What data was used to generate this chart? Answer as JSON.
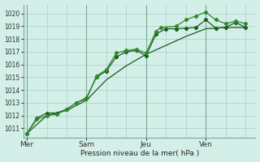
{
  "bg_color": "#d4eee8",
  "grid_color": "#b0ccc8",
  "line_color_dark": "#1a5c1a",
  "line_color_mid": "#1a5c1a",
  "line_color_light": "#2d8b2d",
  "title": "Pression niveau de la mer( hPa )",
  "ylim": [
    1010.3,
    1020.7
  ],
  "yticks": [
    1011,
    1012,
    1013,
    1014,
    1015,
    1016,
    1017,
    1018,
    1019,
    1020
  ],
  "day_labels": [
    "Mer",
    "Sam",
    "Jeu",
    "Ven"
  ],
  "xtick_positions": [
    0.0,
    36.0,
    72.0,
    108.0
  ],
  "xlim": [
    -2,
    138
  ],
  "series1_x": [
    0,
    6,
    12,
    18,
    24,
    30,
    36,
    42,
    48,
    54,
    60,
    66,
    72,
    78,
    81,
    90,
    96,
    102,
    108,
    114,
    120,
    126,
    132
  ],
  "series1_y": [
    1010.6,
    1011.7,
    1012.0,
    1012.1,
    1012.5,
    1013.0,
    1013.3,
    1015.1,
    1015.6,
    1016.9,
    1017.1,
    1017.2,
    1016.9,
    1018.6,
    1018.9,
    1019.0,
    1019.5,
    1019.8,
    1020.1,
    1019.5,
    1019.2,
    1019.4,
    1019.2
  ],
  "series2_x": [
    0,
    6,
    12,
    18,
    24,
    30,
    36,
    42,
    48,
    54,
    60,
    66,
    72,
    78,
    84,
    90,
    96,
    102,
    108,
    114,
    120,
    126,
    132
  ],
  "series2_y": [
    1010.6,
    1011.8,
    1012.2,
    1012.2,
    1012.5,
    1013.0,
    1013.4,
    1015.0,
    1015.5,
    1016.6,
    1017.0,
    1017.1,
    1016.7,
    1018.4,
    1018.8,
    1018.8,
    1018.85,
    1018.9,
    1019.5,
    1018.85,
    1018.9,
    1019.3,
    1018.9
  ],
  "series3_x": [
    0,
    12,
    24,
    36,
    48,
    60,
    72,
    84,
    96,
    108,
    120,
    132
  ],
  "series3_y": [
    1010.6,
    1012.0,
    1012.4,
    1013.2,
    1014.8,
    1015.9,
    1016.8,
    1017.5,
    1018.2,
    1018.8,
    1018.9,
    1018.9
  ],
  "minor_xtick_positions": [
    0,
    12,
    24,
    36,
    48,
    60,
    72,
    84,
    96,
    108,
    120,
    132
  ]
}
